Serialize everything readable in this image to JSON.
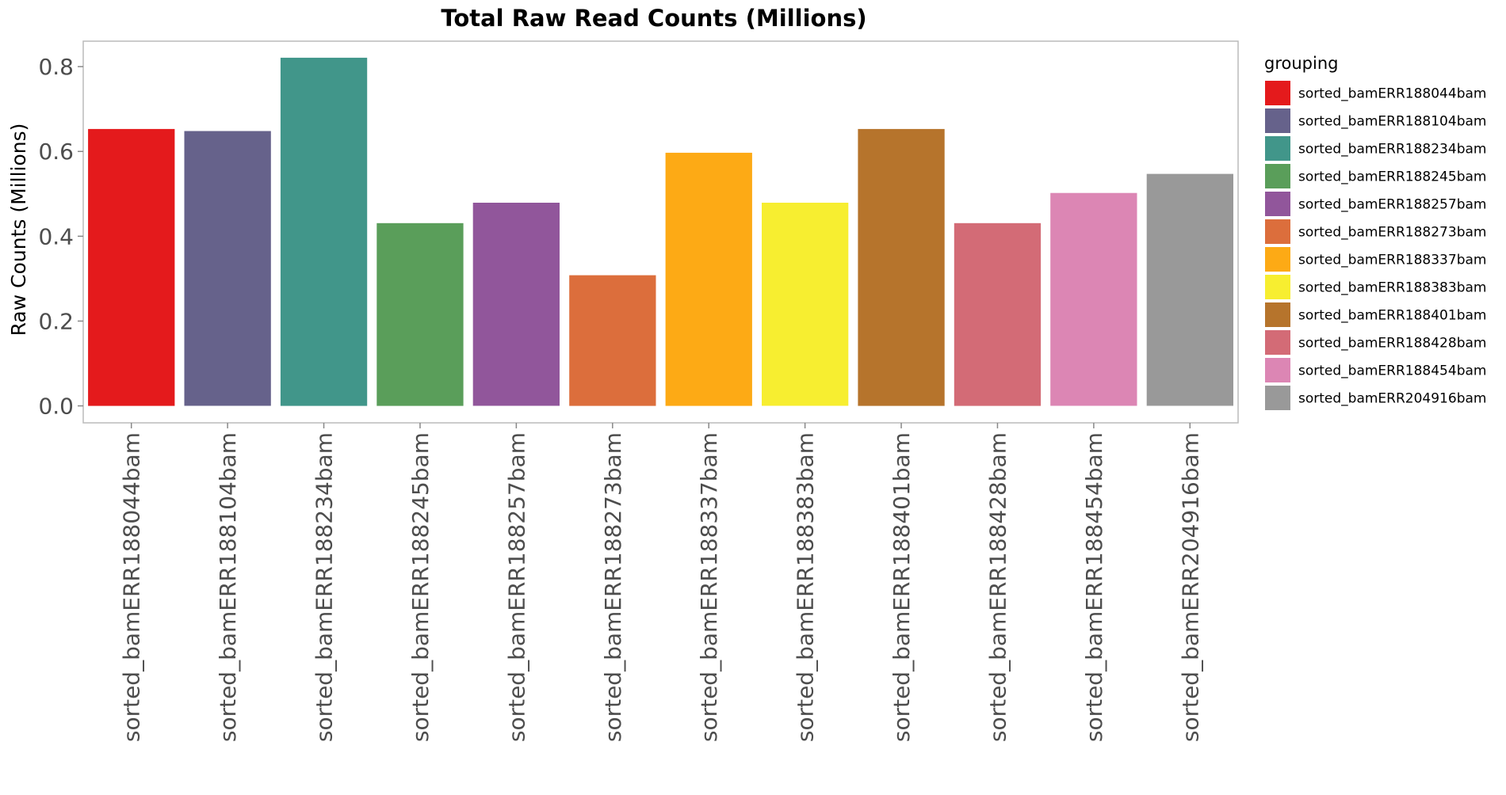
{
  "chart_data": {
    "type": "bar",
    "title": "Total Raw Read Counts (Millions)",
    "xlabel": "",
    "ylabel": "Raw Counts (Millions)",
    "ylim": [
      -0.04,
      0.86
    ],
    "yticks": [
      "0.0",
      "0.2",
      "0.4",
      "0.6",
      "0.8"
    ],
    "ytick_values": [
      0.0,
      0.2,
      0.4,
      0.6,
      0.8
    ],
    "grid": false,
    "legend_title": "grouping",
    "legend_position": "right",
    "categories": [
      "sorted_bamERR188044bam",
      "sorted_bamERR188104bam",
      "sorted_bamERR188234bam",
      "sorted_bamERR188245bam",
      "sorted_bamERR188257bam",
      "sorted_bamERR188273bam",
      "sorted_bamERR188337bam",
      "sorted_bamERR188383bam",
      "sorted_bamERR188401bam",
      "sorted_bamERR188428bam",
      "sorted_bamERR188454bam",
      "sorted_bamERR204916bam"
    ],
    "values": [
      0.653,
      0.648,
      0.821,
      0.431,
      0.479,
      0.308,
      0.597,
      0.479,
      0.653,
      0.431,
      0.502,
      0.547
    ],
    "colors": [
      "#E41A1C",
      "#66628B",
      "#41968A",
      "#5A9E5A",
      "#91569B",
      "#DC6E3C",
      "#FDAA15",
      "#F7EE30",
      "#B6742C",
      "#D36B76",
      "#DC86B4",
      "#999999"
    ]
  }
}
